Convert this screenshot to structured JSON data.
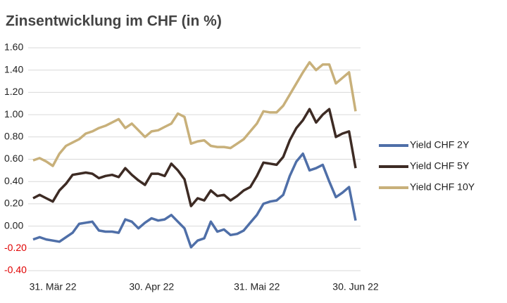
{
  "chart_data": {
    "type": "line",
    "title": "Zinsentwicklung im CHF (in %)",
    "categories": [
      null,
      null,
      null,
      "31. Mär 22",
      null,
      null,
      null,
      null,
      null,
      null,
      null,
      null,
      null,
      null,
      null,
      null,
      null,
      null,
      "30. Apr 22",
      null,
      null,
      null,
      null,
      null,
      null,
      null,
      null,
      null,
      null,
      null,
      null,
      null,
      null,
      null,
      "31. Mai 22",
      null,
      null,
      null,
      null,
      null,
      null,
      null,
      null,
      null,
      null,
      null,
      null,
      null,
      null,
      "30. Jun 22"
    ],
    "series": [
      {
        "name": "Yield CHF 2Y",
        "color": "#4f6fa8",
        "values": [
          -0.12,
          -0.1,
          -0.12,
          -0.13,
          -0.14,
          -0.1,
          -0.06,
          0.02,
          0.03,
          0.04,
          -0.04,
          -0.05,
          -0.05,
          -0.06,
          0.06,
          0.04,
          -0.02,
          0.03,
          0.07,
          0.05,
          0.06,
          0.1,
          0.04,
          -0.02,
          -0.19,
          -0.13,
          -0.11,
          0.04,
          -0.05,
          -0.03,
          -0.08,
          -0.07,
          -0.04,
          0.03,
          0.1,
          0.2,
          0.22,
          0.23,
          0.28,
          0.45,
          0.58,
          0.65,
          0.5,
          0.52,
          0.55,
          0.4,
          0.26,
          0.3,
          0.35,
          0.05
        ]
      },
      {
        "name": "Yield CHF 5Y",
        "color": "#3d2b24",
        "values": [
          0.25,
          0.28,
          0.25,
          0.22,
          0.32,
          0.38,
          0.46,
          0.47,
          0.48,
          0.47,
          0.43,
          0.45,
          0.46,
          0.44,
          0.52,
          0.46,
          0.41,
          0.37,
          0.47,
          0.47,
          0.45,
          0.56,
          0.5,
          0.42,
          0.18,
          0.25,
          0.23,
          0.32,
          0.27,
          0.28,
          0.23,
          0.27,
          0.32,
          0.35,
          0.45,
          0.57,
          0.56,
          0.55,
          0.62,
          0.77,
          0.88,
          0.95,
          1.05,
          0.93,
          1.0,
          1.05,
          0.8,
          0.83,
          0.85,
          0.52
        ]
      },
      {
        "name": "Yield CHF 10Y",
        "color": "#c8b07a",
        "values": [
          0.59,
          0.61,
          0.58,
          0.54,
          0.65,
          0.72,
          0.75,
          0.78,
          0.83,
          0.85,
          0.88,
          0.9,
          0.93,
          0.96,
          0.88,
          0.92,
          0.86,
          0.8,
          0.85,
          0.86,
          0.89,
          0.92,
          1.01,
          0.98,
          0.74,
          0.76,
          0.77,
          0.72,
          0.71,
          0.71,
          0.7,
          0.74,
          0.78,
          0.85,
          0.92,
          1.03,
          1.02,
          1.02,
          1.08,
          1.18,
          1.28,
          1.38,
          1.47,
          1.4,
          1.45,
          1.45,
          1.28,
          1.33,
          1.38,
          1.03
        ]
      }
    ],
    "ylim": [
      -0.4,
      1.6
    ],
    "yticks": [
      {
        "value": 1.6,
        "label": "1.60"
      },
      {
        "value": 1.4,
        "label": "1.40"
      },
      {
        "value": 1.2,
        "label": "1.20"
      },
      {
        "value": 1.0,
        "label": "1.00"
      },
      {
        "value": 0.8,
        "label": "0.80"
      },
      {
        "value": 0.6,
        "label": "0.60"
      },
      {
        "value": 0.4,
        "label": "0.40"
      },
      {
        "value": 0.2,
        "label": "0.20"
      },
      {
        "value": 0,
        "label": "0.00"
      },
      {
        "value": -0.2,
        "label": "-0.20"
      },
      {
        "value": -0.4,
        "label": "-0.40"
      }
    ],
    "grid": true,
    "legend": "right"
  }
}
